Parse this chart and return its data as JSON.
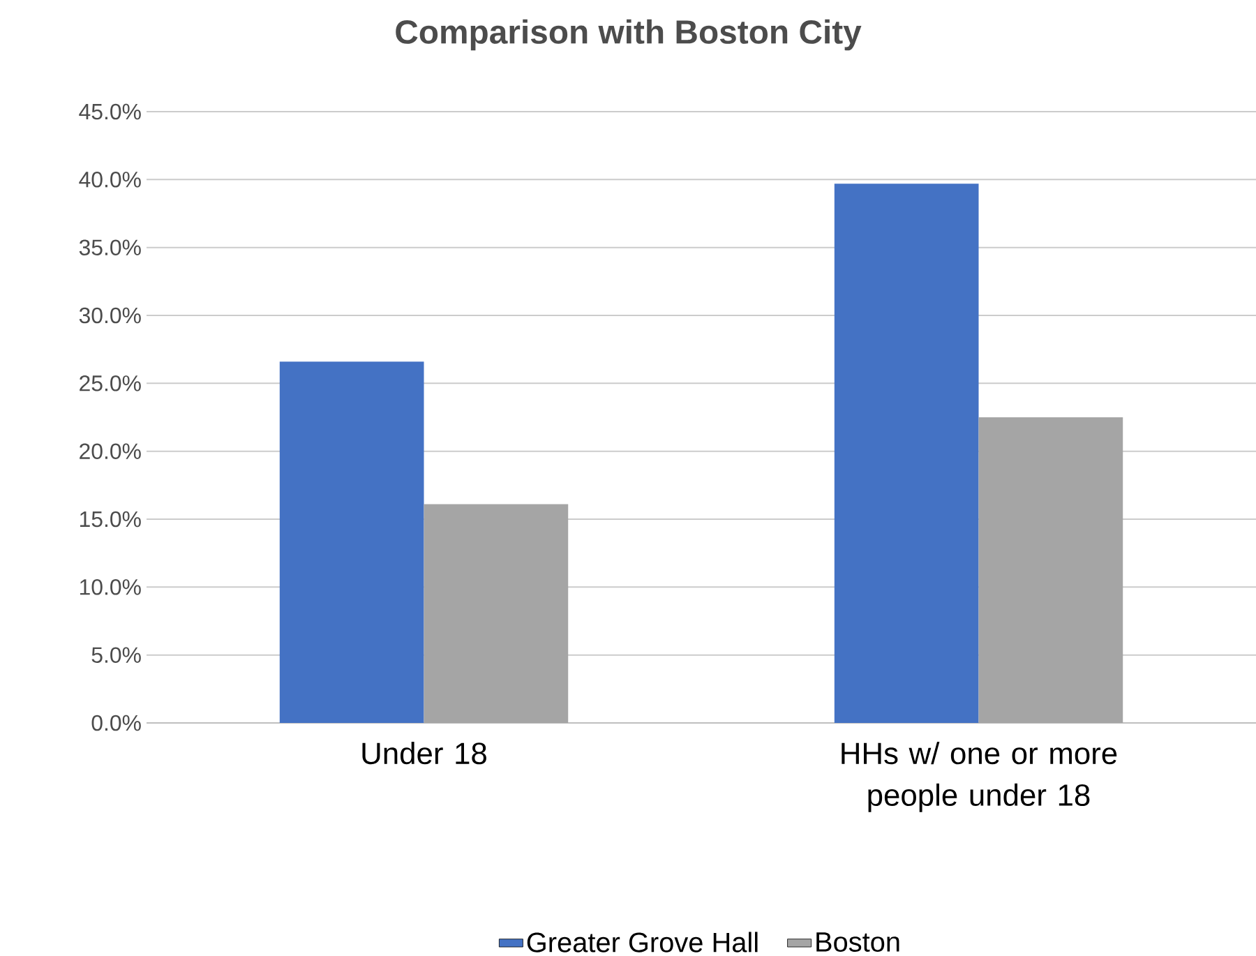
{
  "chart_data": {
    "type": "bar",
    "title": "Comparison with Boston City",
    "categories": [
      "Under 18",
      "HHs w/ one or more people under 18"
    ],
    "series": [
      {
        "name": "Greater Grove Hall",
        "color": "#4472c4",
        "values": [
          26.6,
          39.7
        ]
      },
      {
        "name": "Boston",
        "color": "#a5a5a5",
        "values": [
          16.1,
          22.5
        ]
      }
    ],
    "ylim": [
      0,
      45
    ],
    "yticks": [
      {
        "value": 0,
        "label": "0.0%"
      },
      {
        "value": 5,
        "label": "5.0%"
      },
      {
        "value": 10,
        "label": "10.0%"
      },
      {
        "value": 15,
        "label": "15.0%"
      },
      {
        "value": 20,
        "label": "20.0%"
      },
      {
        "value": 25,
        "label": "25.0%"
      },
      {
        "value": 30,
        "label": "30.0%"
      },
      {
        "value": 35,
        "label": "35.0%"
      },
      {
        "value": 40,
        "label": "40.0%"
      },
      {
        "value": 45,
        "label": "45.0%"
      }
    ],
    "grid": "y",
    "legend": "bottom"
  }
}
